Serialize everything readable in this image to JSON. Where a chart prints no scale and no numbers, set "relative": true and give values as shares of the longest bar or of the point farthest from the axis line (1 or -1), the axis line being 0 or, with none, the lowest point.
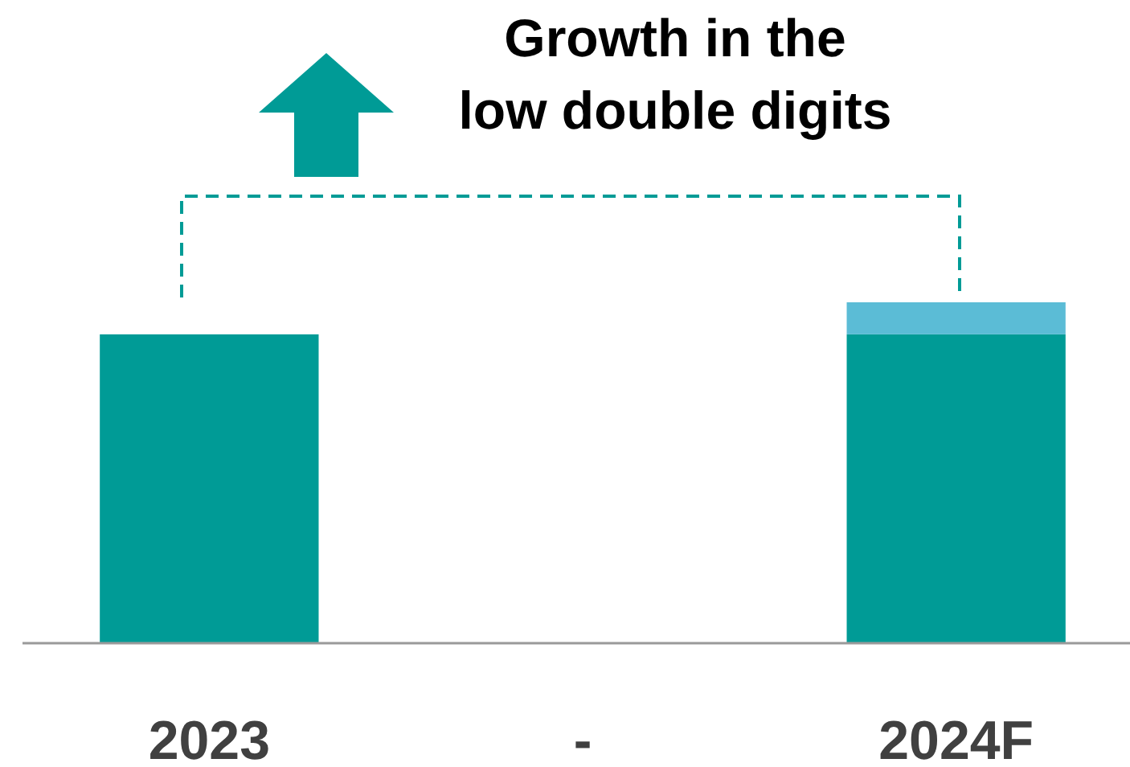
{
  "chart_data": {
    "type": "bar",
    "title": "Growth in the low double digits",
    "categories": [
      "2023",
      "-",
      "2024F"
    ],
    "relative": true,
    "stacked": true,
    "series": [
      {
        "color": "#009b96",
        "values": [
          0.906,
          null,
          0.906
        ]
      },
      {
        "color": "#5bbcd6",
        "values": [
          null,
          null,
          0.094
        ]
      }
    ]
  }
}
